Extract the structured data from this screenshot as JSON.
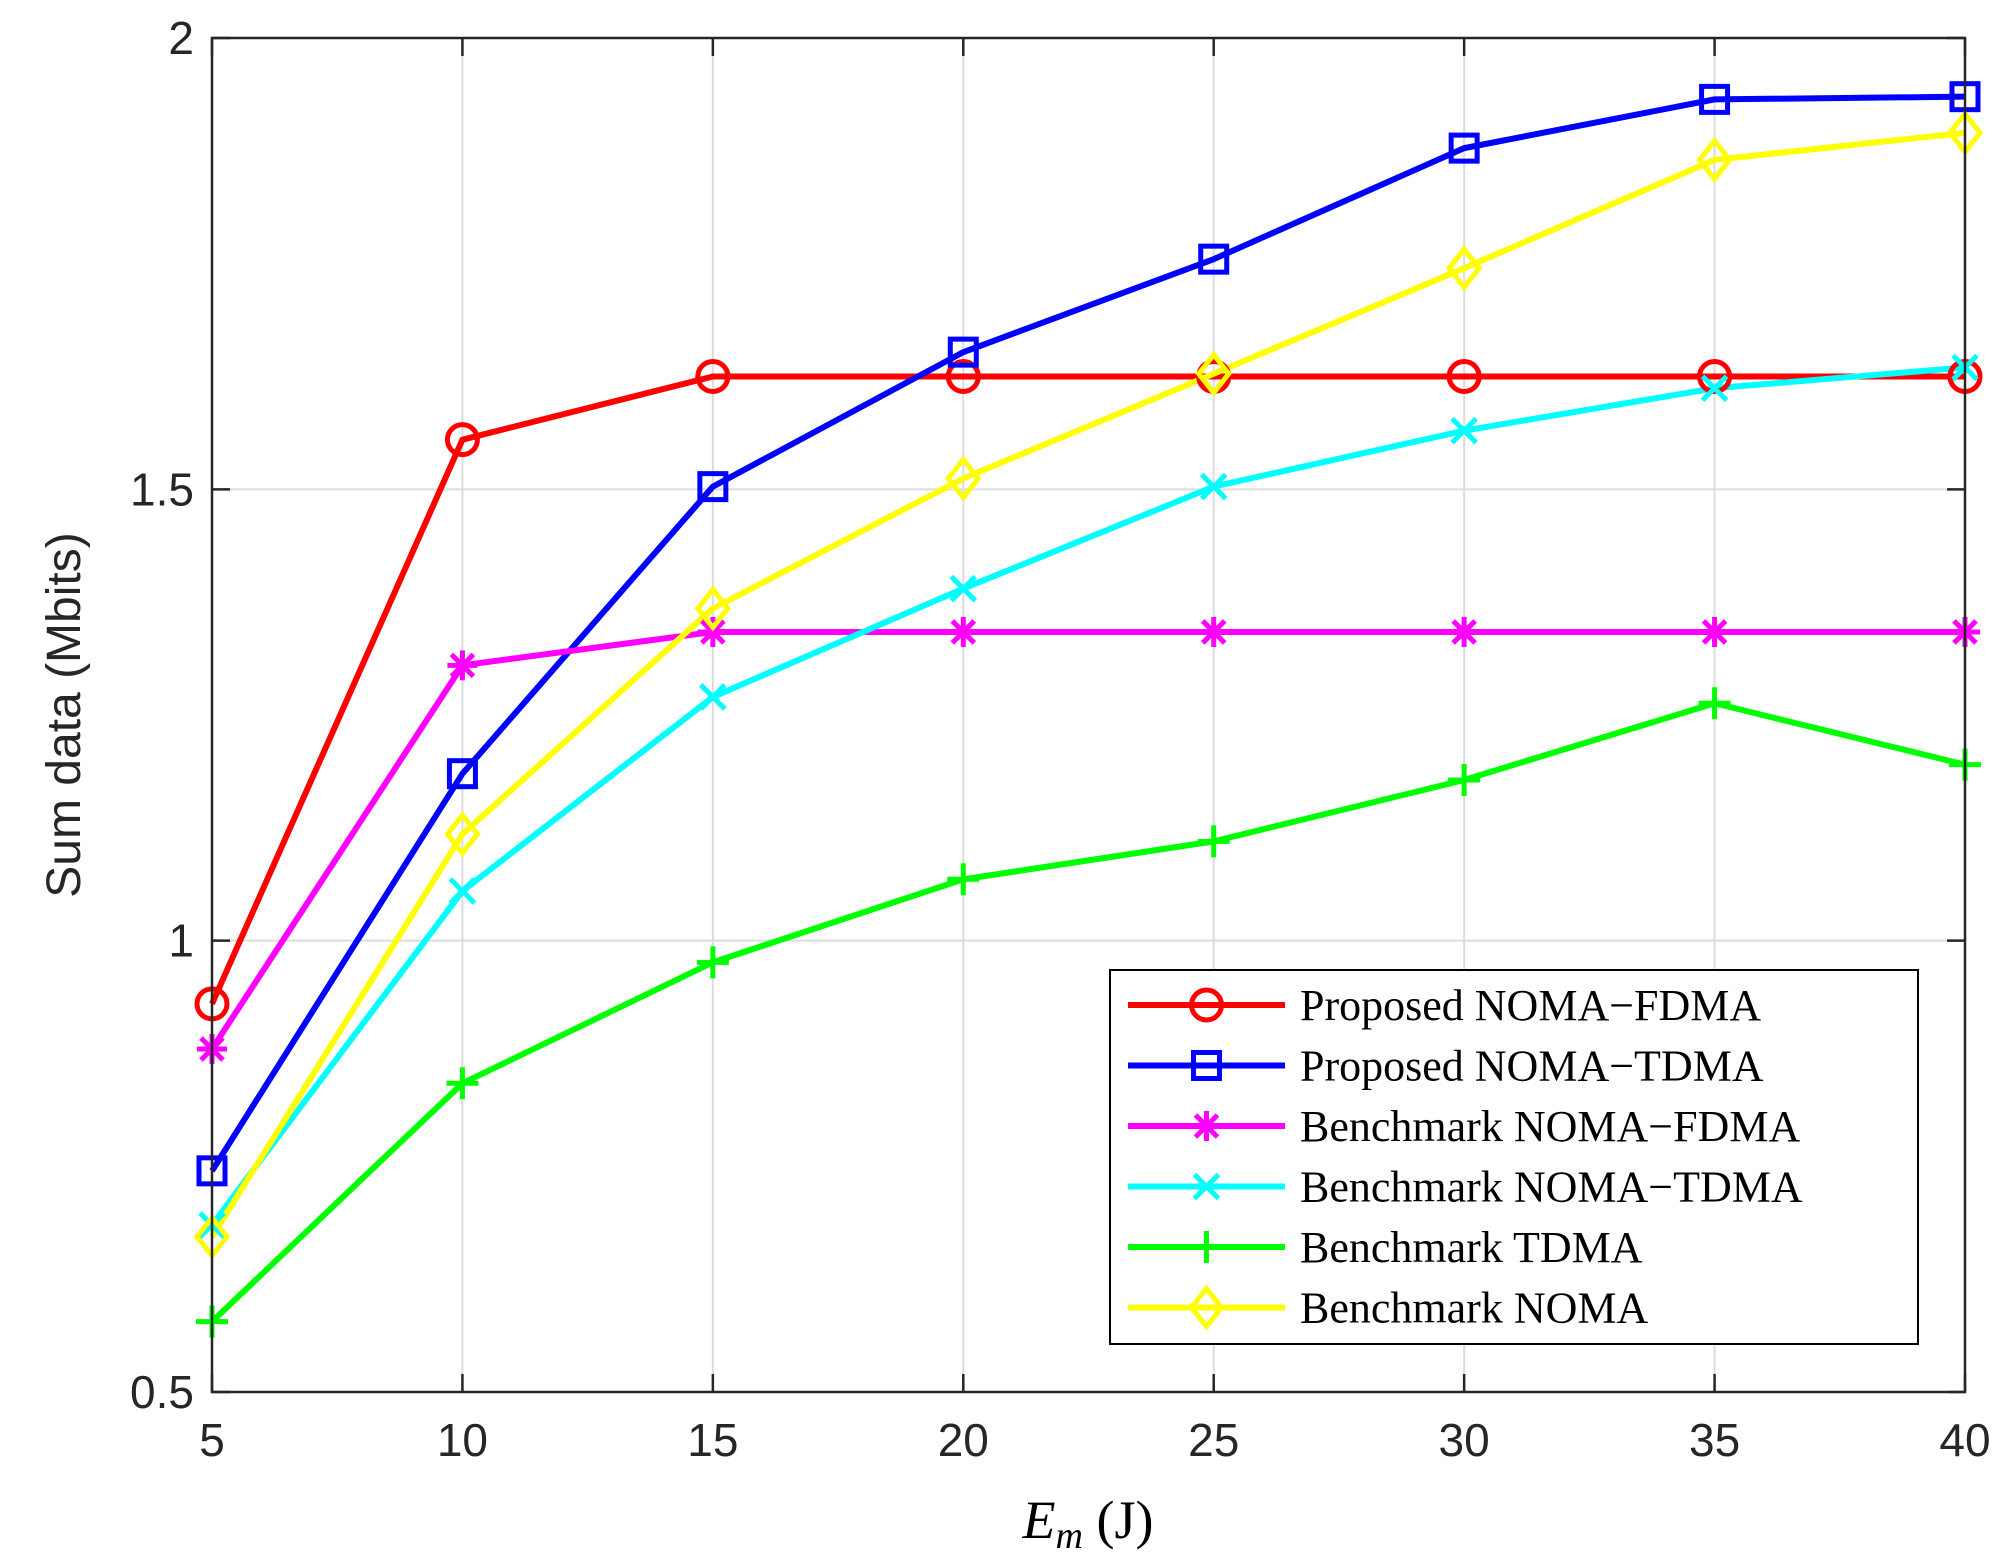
{
  "chart_data": {
    "type": "line",
    "x": [
      5,
      10,
      15,
      20,
      25,
      30,
      35,
      40
    ],
    "xlim": [
      5,
      40
    ],
    "ylim": [
      0.5,
      2
    ],
    "xticks": [
      5,
      10,
      15,
      20,
      25,
      30,
      35,
      40
    ],
    "yticks": [
      0.5,
      1,
      1.5,
      2
    ],
    "ytick_labels": [
      "0.5",
      "1",
      "1.5",
      "2"
    ],
    "xlabel": "E_m (J)",
    "xlabel_parts": {
      "main": "E",
      "sub": "m",
      "unit": " (J)"
    },
    "ylabel": "Sum data (Mbits)",
    "grid": true,
    "legend_position": "bottom-right",
    "series": [
      {
        "name": "Proposed NOMA−FDMA",
        "color": "#ff0000",
        "marker": "circle",
        "values": [
          0.93,
          1.555,
          1.625,
          1.625,
          1.625,
          1.625,
          1.625,
          1.625
        ]
      },
      {
        "name": "Proposed NOMA−TDMA",
        "color": "#0000ff",
        "marker": "square",
        "values": [
          0.745,
          1.185,
          1.503,
          1.652,
          1.755,
          1.878,
          1.932,
          1.935
        ]
      },
      {
        "name": "Benchmark NOMA−FDMA",
        "color": "#ff00ff",
        "marker": "asterisk",
        "values": [
          0.88,
          1.305,
          1.342,
          1.342,
          1.342,
          1.342,
          1.342,
          1.342
        ]
      },
      {
        "name": "Benchmark NOMA−TDMA",
        "color": "#00ffff",
        "marker": "x",
        "values": [
          0.685,
          1.055,
          1.27,
          1.39,
          1.503,
          1.565,
          1.612,
          1.635
        ]
      },
      {
        "name": "Benchmark TDMA",
        "color": "#00ff00",
        "marker": "plus",
        "values": [
          0.578,
          0.842,
          0.976,
          1.068,
          1.11,
          1.178,
          1.263,
          1.195
        ]
      },
      {
        "name": "Benchmark NOMA",
        "color": "#ffff00",
        "marker": "diamond",
        "values": [
          0.672,
          1.118,
          1.368,
          1.512,
          1.628,
          1.745,
          1.865,
          1.895
        ]
      }
    ]
  }
}
